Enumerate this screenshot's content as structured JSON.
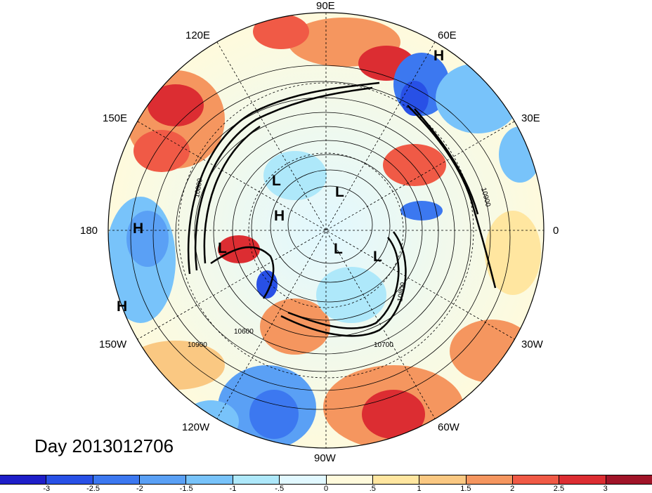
{
  "title": "Day 2013012706",
  "longitude_labels": {
    "lon_90e": "90E",
    "lon_60e": "60E",
    "lon_30e": "30E",
    "lon_0": "0",
    "lon_30w": "30W",
    "lon_60w": "60W",
    "lon_90w": "90W",
    "lon_120w": "120W",
    "lon_150w": "150W",
    "lon_180": "180",
    "lon_150e": "150E",
    "lon_120e": "120E"
  },
  "pressure_centers": [
    {
      "type": "H"
    },
    {
      "type": "H"
    },
    {
      "type": "H"
    },
    {
      "type": "H"
    },
    {
      "type": "L"
    },
    {
      "type": "L"
    },
    {
      "type": "L"
    },
    {
      "type": "L"
    },
    {
      "type": "L"
    }
  ],
  "contour_labels": [
    "10600",
    "10700",
    "10800",
    "10900",
    "10900",
    "10800"
  ],
  "colorbar": {
    "ticks": [
      "-3",
      "-2.5",
      "-2",
      "-1.5",
      "-1",
      "-.5",
      "0",
      ".5",
      "1",
      "1.5",
      "2",
      "2.5",
      "3"
    ],
    "colors": [
      "#1e1ec8",
      "#2850e6",
      "#3c78f0",
      "#5aa0f5",
      "#78c3fa",
      "#aee8fa",
      "#e1f8ff",
      "#fffadc",
      "#ffe6a0",
      "#fac882",
      "#f5965f",
      "#f05a46",
      "#dc2d32",
      "#a01428"
    ]
  }
}
